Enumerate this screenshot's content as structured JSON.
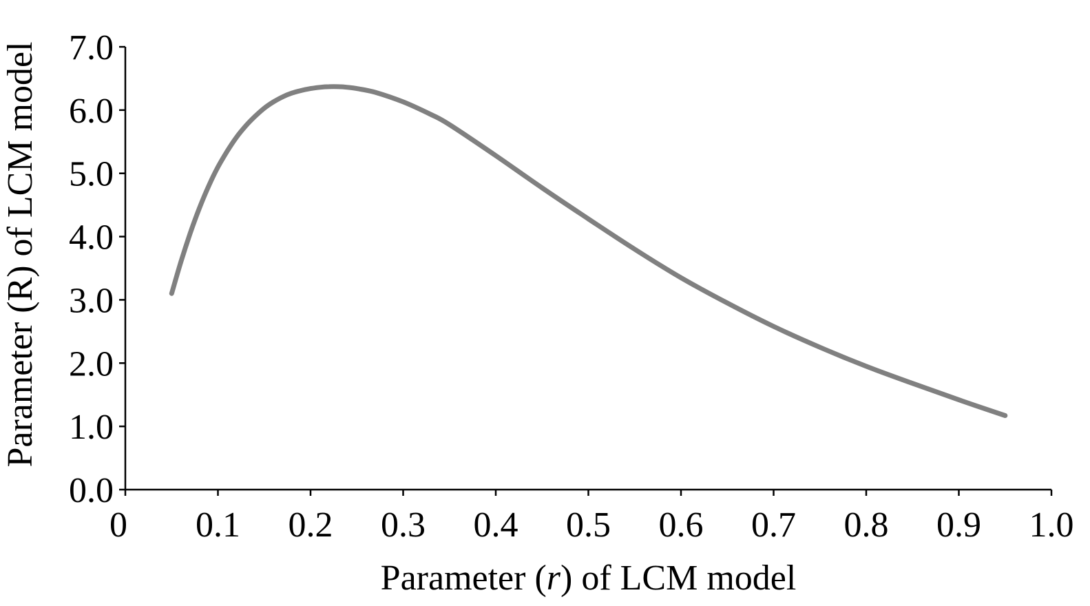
{
  "chart_data": {
    "type": "line",
    "xlabel": {
      "before": "Parameter (",
      "var": "r",
      "after": ") of LCM model"
    },
    "ylabel": "Parameter (R) of LCM model",
    "xlim": [
      0,
      1.0
    ],
    "ylim": [
      0,
      7.0
    ],
    "x_ticks": [
      "0",
      "0.1",
      "0.2",
      "0.3",
      "0.4",
      "0.5",
      "0.6",
      "0.7",
      "0.8",
      "0.9",
      "1.0"
    ],
    "x_tick_values": [
      0,
      0.1,
      0.2,
      0.3,
      0.4,
      0.5,
      0.6,
      0.7,
      0.8,
      0.9,
      1.0
    ],
    "y_ticks": [
      "0.0",
      "1.0",
      "2.0",
      "3.0",
      "4.0",
      "5.0",
      "6.0",
      "7.0"
    ],
    "y_tick_values": [
      0,
      1,
      2,
      3,
      4,
      5,
      6,
      7
    ],
    "grid": false,
    "series": [
      {
        "color": "#808080",
        "x": [
          0.05,
          0.06,
          0.07,
          0.08,
          0.09,
          0.1,
          0.11,
          0.12,
          0.13,
          0.14,
          0.15,
          0.16,
          0.17,
          0.18,
          0.19,
          0.2,
          0.21,
          0.22,
          0.23,
          0.24,
          0.25,
          0.27,
          0.3,
          0.33,
          0.35,
          0.4,
          0.45,
          0.5,
          0.55,
          0.6,
          0.65,
          0.7,
          0.75,
          0.8,
          0.85,
          0.9,
          0.95
        ],
        "y": [
          3.1,
          3.6,
          4.05,
          4.45,
          4.8,
          5.1,
          5.35,
          5.57,
          5.75,
          5.9,
          6.03,
          6.13,
          6.21,
          6.27,
          6.31,
          6.34,
          6.36,
          6.37,
          6.37,
          6.36,
          6.34,
          6.28,
          6.13,
          5.93,
          5.77,
          5.28,
          4.77,
          4.28,
          3.8,
          3.35,
          2.95,
          2.58,
          2.25,
          1.95,
          1.68,
          1.42,
          1.17
        ]
      }
    ]
  }
}
